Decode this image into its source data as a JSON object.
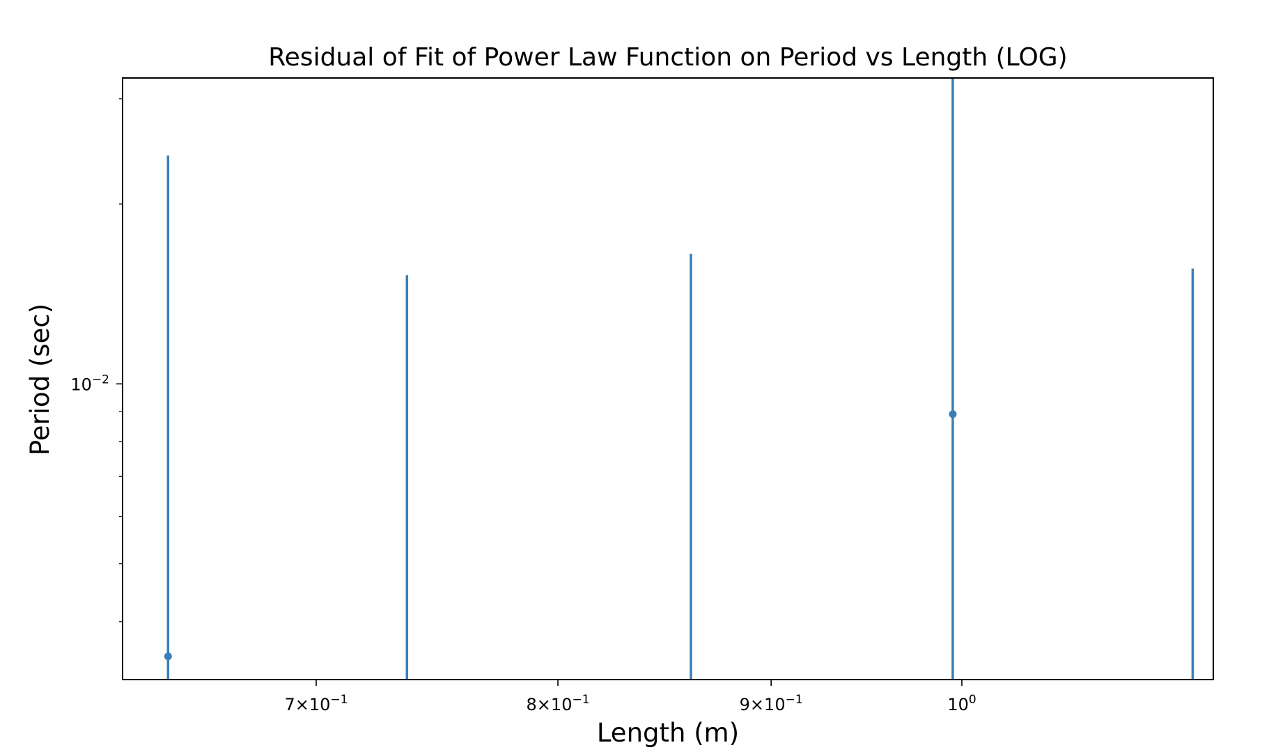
{
  "chart_data": {
    "type": "scatter",
    "title": "Residual of Fit of Power Law Function on Period vs Length (LOG)",
    "xlabel": "Length (m)",
    "ylabel": "Period (sec)",
    "x_scale": "log",
    "y_scale": "log",
    "xlim": [
      0.629,
      1.149
    ],
    "ylim": [
      0.0032,
      0.0325
    ],
    "grid": false,
    "legend": "none",
    "colors": {
      "series": "#3a7fb8",
      "axes": "#000000"
    },
    "x_ticks": [
      {
        "value": 0.7,
        "mantissa": "7",
        "base": "10",
        "exp": "−1"
      },
      {
        "value": 0.8,
        "mantissa": "8",
        "base": "10",
        "exp": "−1"
      },
      {
        "value": 0.9,
        "mantissa": "9",
        "base": "10",
        "exp": "−1"
      },
      {
        "value": 1.0,
        "mantissa": "",
        "base": "10",
        "exp": "0"
      }
    ],
    "y_ticks": [
      {
        "value": 0.01,
        "base": "10",
        "exp": "−2"
      }
    ],
    "series": [
      {
        "x": [
          0.645,
          0.736,
          0.861,
          0.995,
          1.136
        ],
        "y": [
          0.0035,
          null,
          null,
          0.0089,
          null
        ],
        "yerr_low": [
          0.0035,
          0.0035,
          0.0035,
          0.0089,
          0.0035
        ],
        "yerr_high": [
          0.0206,
          0.0117,
          0.013,
          0.026,
          0.0121
        ]
      }
    ]
  }
}
